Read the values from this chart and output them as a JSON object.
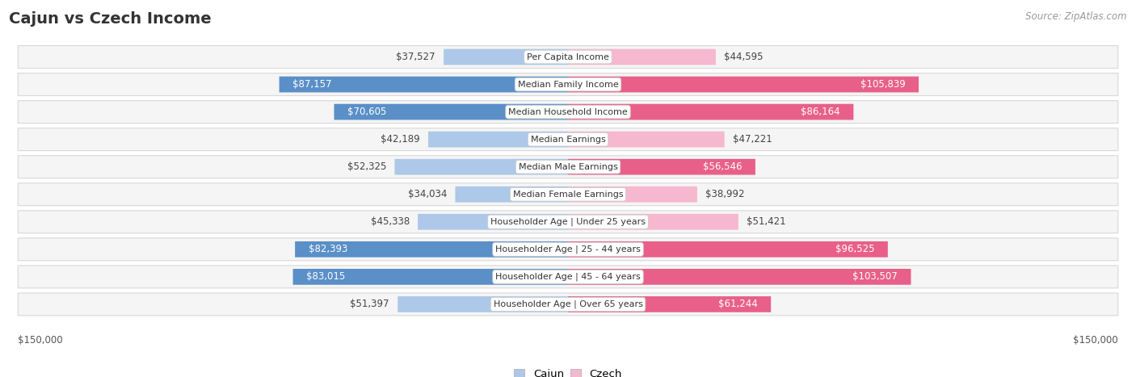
{
  "title": "Cajun vs Czech Income",
  "source": "Source: ZipAtlas.com",
  "categories": [
    "Per Capita Income",
    "Median Family Income",
    "Median Household Income",
    "Median Earnings",
    "Median Male Earnings",
    "Median Female Earnings",
    "Householder Age | Under 25 years",
    "Householder Age | 25 - 44 years",
    "Householder Age | 45 - 64 years",
    "Householder Age | Over 65 years"
  ],
  "cajun_values": [
    37527,
    87157,
    70605,
    42189,
    52325,
    34034,
    45338,
    82393,
    83015,
    51397
  ],
  "czech_values": [
    44595,
    105839,
    86164,
    47221,
    56546,
    38992,
    51421,
    96525,
    103507,
    61244
  ],
  "cajun_color_light": "#adc8e8",
  "cajun_color_dark": "#5a8fc8",
  "czech_color_light": "#f5b8ce",
  "czech_color_dark": "#e8608a",
  "max_value": 150000,
  "x_label_left": "$150,000",
  "x_label_right": "$150,000",
  "row_bg": "#f0f0f0",
  "background_color": "#ffffff",
  "inside_label_threshold": 55000,
  "title_fontsize": 14,
  "label_fontsize": 8.5,
  "cat_fontsize": 8.0,
  "source_fontsize": 8.5
}
